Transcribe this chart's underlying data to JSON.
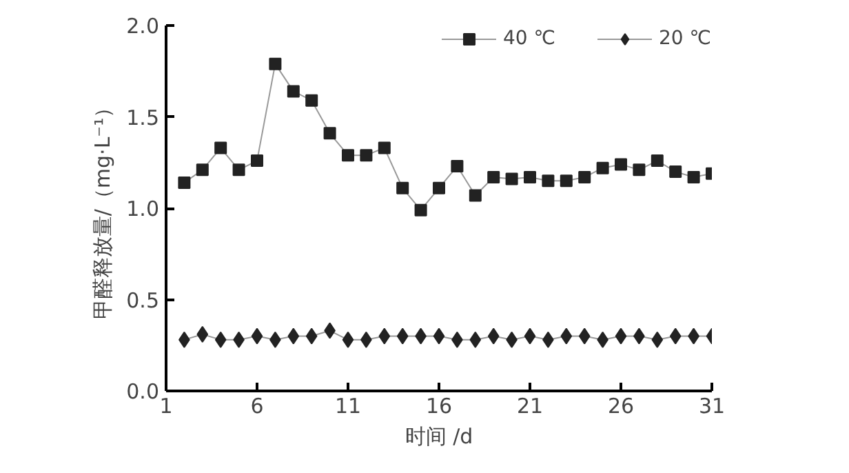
{
  "chart_data": {
    "type": "line",
    "xlabel": "时间 /d",
    "ylabel": "甲醛释放量/（mg·L⁻¹）",
    "xlim": [
      1,
      31
    ],
    "xticks": [
      1,
      6,
      11,
      16,
      21,
      26,
      31
    ],
    "ylim": [
      0,
      2.0
    ],
    "yticks": [
      {
        "value": 0,
        "label": "0.0"
      },
      {
        "value": 0.5,
        "label": "0.5"
      },
      {
        "value": 1.0,
        "label": "1.0"
      },
      {
        "value": 1.5,
        "label": "1.5"
      },
      {
        "value": 2.0,
        "label": "2.0"
      }
    ],
    "grid": false,
    "legend": "top",
    "line_style": "solid",
    "x": [
      2,
      3,
      4,
      5,
      6,
      7,
      8,
      9,
      10,
      11,
      12,
      13,
      14,
      15,
      16,
      17,
      18,
      19,
      20,
      21,
      22,
      23,
      24,
      25,
      26,
      27,
      28,
      29,
      30,
      31
    ],
    "series": [
      {
        "name": "40 ℃",
        "color": "#222222",
        "marker": "square",
        "values": [
          1.14,
          1.21,
          1.33,
          1.21,
          1.26,
          1.79,
          1.64,
          1.59,
          1.41,
          1.29,
          1.29,
          1.33,
          1.11,
          0.99,
          1.11,
          1.23,
          1.07,
          1.17,
          1.16,
          1.17,
          1.15,
          1.15,
          1.17,
          1.22,
          1.24,
          1.21,
          1.26,
          1.2,
          1.17,
          1.19
        ]
      },
      {
        "name": "20 ℃",
        "color": "#222222",
        "marker": "diamond",
        "values": [
          0.28,
          0.31,
          0.28,
          0.28,
          0.3,
          0.28,
          0.3,
          0.3,
          0.33,
          0.28,
          0.28,
          0.3,
          0.3,
          0.3,
          0.3,
          0.28,
          0.28,
          0.3,
          0.28,
          0.3,
          0.28,
          0.3,
          0.3,
          0.28,
          0.3,
          0.3,
          0.28,
          0.3,
          0.3,
          0.3
        ]
      }
    ]
  }
}
